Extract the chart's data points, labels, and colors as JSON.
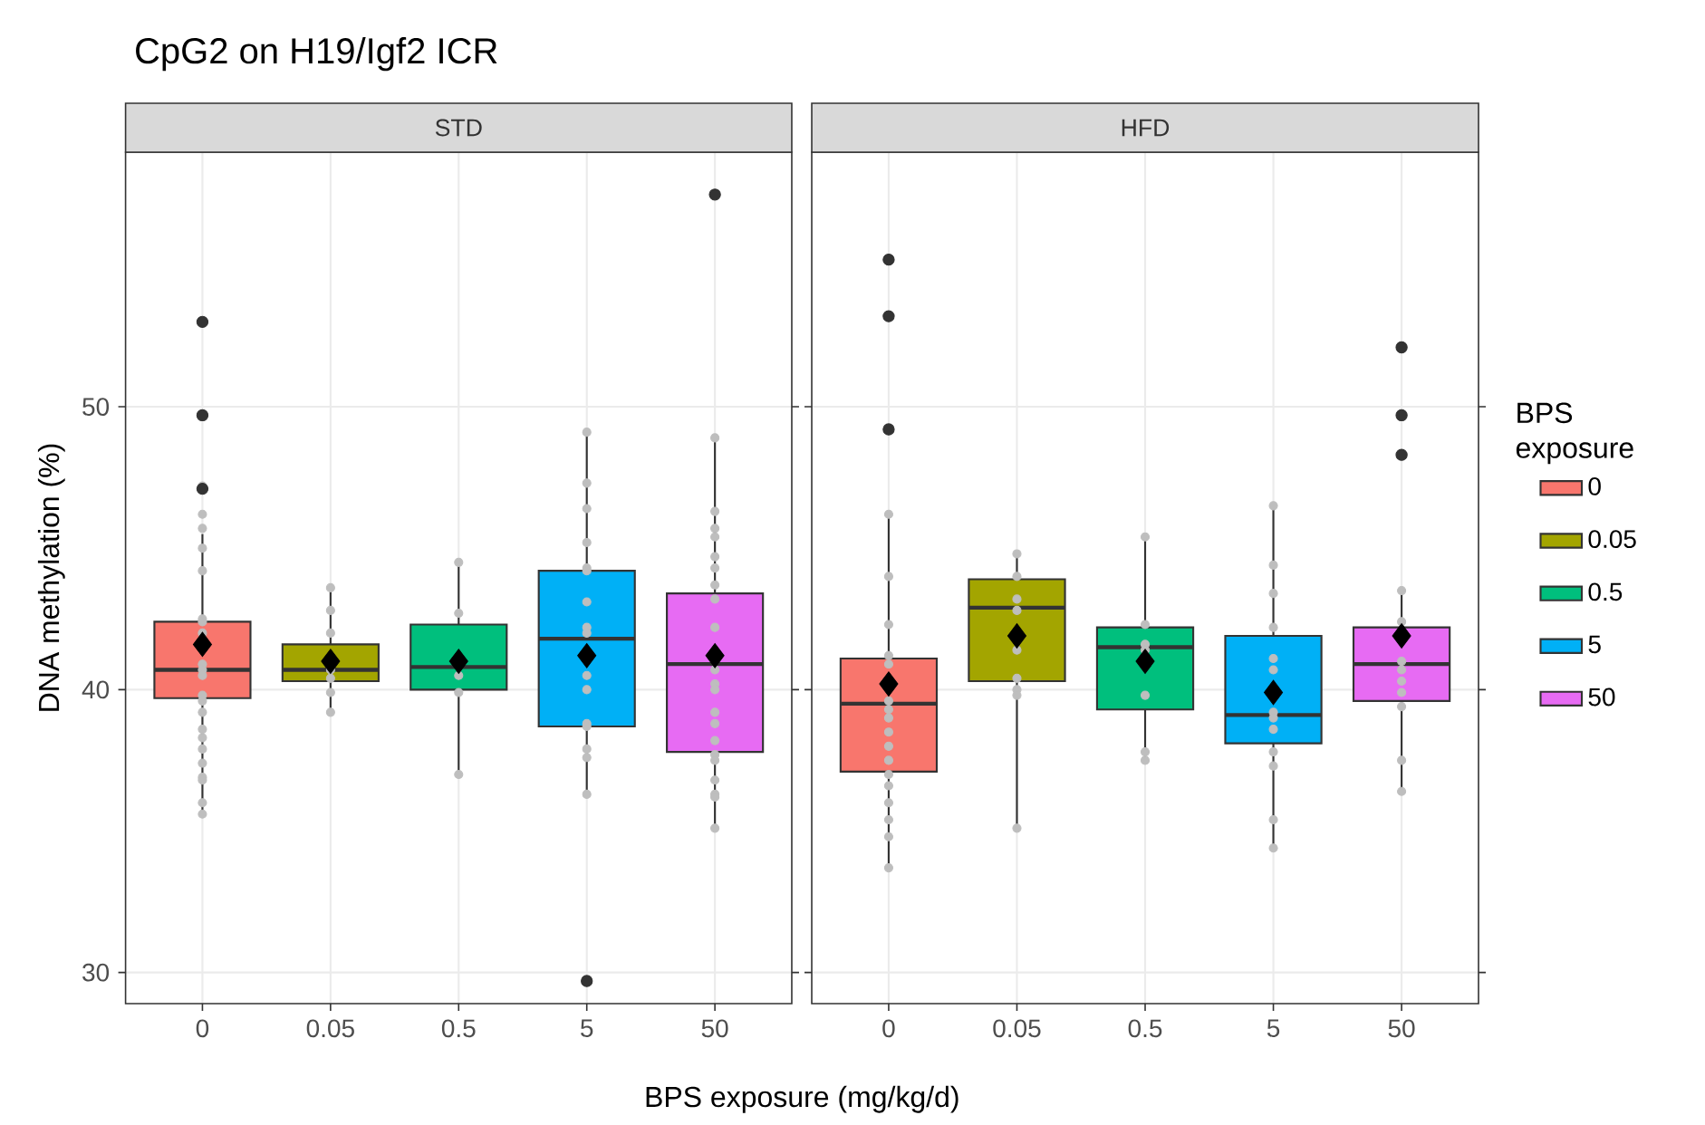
{
  "chart_data": [
    {
      "type": "box",
      "title": "CpG2 on H19/Igf2 ICR",
      "subtitle": "STD",
      "xlabel": "BPS exposure (mg/kg/d)",
      "ylabel": "DNA methylation (%)",
      "categories": [
        "0",
        "0.05",
        "0.5",
        "5",
        "50"
      ],
      "ylim": [
        28.9,
        59.0
      ],
      "yticks": [
        30,
        40,
        50
      ],
      "grid": true,
      "series": [
        {
          "color": "#f8766d",
          "boxes": [
            {
              "low": 35.6,
              "q1": 39.7,
              "median": 40.7,
              "q3": 42.4,
              "high": 45.5,
              "mean": 41.6,
              "outliers": [
                53.0,
                49.7,
                47.1
              ]
            },
            null,
            null,
            null,
            null
          ]
        },
        {
          "color": "#a3a500",
          "boxes": [
            null,
            {
              "low": 39.2,
              "q1": 40.3,
              "median": 40.7,
              "q3": 41.6,
              "high": 43.6,
              "mean": 41.0
            },
            null,
            null,
            null
          ]
        },
        {
          "color": "#00bf7d",
          "boxes": [
            null,
            null,
            {
              "low": 37.0,
              "q1": 40.0,
              "median": 40.8,
              "q3": 42.3,
              "high": 44.5,
              "mean": 41.0
            },
            null,
            null
          ]
        },
        {
          "color": "#00b0f6",
          "boxes": [
            null,
            null,
            null,
            {
              "low": 36.3,
              "q1": 38.7,
              "median": 41.8,
              "q3": 44.2,
              "high": 49.1,
              "mean": 41.2,
              "outliers": [
                29.7
              ]
            },
            null
          ]
        },
        {
          "color": "#e76bf3",
          "boxes": [
            null,
            null,
            null,
            null,
            {
              "low": 35.1,
              "q1": 37.8,
              "median": 40.9,
              "q3": 43.4,
              "high": 48.9,
              "mean": 41.2,
              "outliers": [
                57.5
              ]
            }
          ]
        },
        {
          "type": "scatter",
          "color": "#bebebe",
          "x": [
            "0",
            "0",
            "0",
            "0",
            "0",
            "0",
            "0",
            "0",
            "0",
            "0",
            "0",
            "0",
            "0",
            "0",
            "0",
            "0",
            "0",
            "0",
            "0",
            "0",
            "0",
            "0",
            "0.05",
            "0.05",
            "0.05",
            "0.05",
            "0.05",
            "0.05",
            "0.05",
            "0.5",
            "0.5",
            "0.5",
            "0.5",
            "0.5",
            "5",
            "5",
            "5",
            "5",
            "5",
            "5",
            "5",
            "5",
            "5",
            "5",
            "5",
            "5",
            "5",
            "5",
            "5",
            "5",
            "50",
            "50",
            "50",
            "50",
            "50",
            "50",
            "50",
            "50",
            "50",
            "50",
            "50",
            "50",
            "50",
            "50",
            "50",
            "50",
            "50",
            "50",
            "50",
            "50",
            "50"
          ],
          "values": [
            45.7,
            45.0,
            44.2,
            42.5,
            42.4,
            42.0,
            40.9,
            40.7,
            40.5,
            39.8,
            39.6,
            39.2,
            38.6,
            38.3,
            37.9,
            37.4,
            36.9,
            36.8,
            36.0,
            35.6,
            47.2,
            46.2,
            43.6,
            42.8,
            42.0,
            40.7,
            40.4,
            39.9,
            39.2,
            44.5,
            42.7,
            40.5,
            39.9,
            37.0,
            49.1,
            47.3,
            46.4,
            45.2,
            44.3,
            44.2,
            43.1,
            42.2,
            42.0,
            40.5,
            40.0,
            38.8,
            38.7,
            37.9,
            37.6,
            36.3,
            48.9,
            46.3,
            45.7,
            45.4,
            44.7,
            44.3,
            43.7,
            43.2,
            42.2,
            40.7,
            40.2,
            40.0,
            39.2,
            38.8,
            38.2,
            37.7,
            37.5,
            36.8,
            36.3,
            36.2,
            35.1
          ]
        }
      ]
    },
    {
      "type": "box",
      "subtitle": "HFD",
      "legend": "right",
      "legend_title": "BPS exposure",
      "categories": [
        "0",
        "0.05",
        "0.5",
        "5",
        "50"
      ],
      "ylim": [
        28.9,
        59.0
      ],
      "yticks": [
        30,
        40,
        50
      ],
      "grid": true,
      "tick_labels": "x",
      "series": [
        {
          "name": "0",
          "color": "#f8766d",
          "boxes": [
            {
              "low": 33.7,
              "q1": 37.1,
              "median": 39.5,
              "q3": 41.1,
              "high": 46.1,
              "mean": 40.2,
              "outliers": [
                55.2,
                53.2,
                49.2
              ]
            },
            null,
            null,
            null,
            null
          ]
        },
        {
          "name": "0.05",
          "color": "#a3a500",
          "boxes": [
            null,
            {
              "low": 35.1,
              "q1": 40.3,
              "median": 42.9,
              "q3": 43.9,
              "high": 44.8,
              "mean": 41.9
            },
            null,
            null,
            null
          ]
        },
        {
          "name": "0.5",
          "color": "#00bf7d",
          "boxes": [
            null,
            null,
            {
              "low": 37.5,
              "q1": 39.3,
              "median": 41.5,
              "q3": 42.2,
              "high": 45.4,
              "mean": 41.0
            },
            null,
            null
          ]
        },
        {
          "name": "5",
          "color": "#00b0f6",
          "boxes": [
            null,
            null,
            null,
            {
              "low": 34.4,
              "q1": 38.1,
              "median": 39.1,
              "q3": 41.9,
              "high": 46.4,
              "mean": 39.9
            },
            null
          ]
        },
        {
          "name": "50",
          "color": "#e76bf3",
          "boxes": [
            null,
            null,
            null,
            null,
            {
              "low": 36.4,
              "q1": 39.6,
              "median": 40.9,
              "q3": 42.2,
              "high": 43.5,
              "mean": 41.9,
              "outliers": [
                52.1,
                49.7,
                48.3
              ]
            }
          ]
        },
        {
          "type": "scatter",
          "color": "#bebebe",
          "x": [
            "0",
            "0",
            "0",
            "0",
            "0",
            "0",
            "0",
            "0",
            "0",
            "0",
            "0",
            "0",
            "0",
            "0",
            "0",
            "0",
            "0",
            "0.05",
            "0.05",
            "0.05",
            "0.05",
            "0.05",
            "0.05",
            "0.05",
            "0.05",
            "0.05",
            "0.5",
            "0.5",
            "0.5",
            "0.5",
            "0.5",
            "0.5",
            "0.5",
            "5",
            "5",
            "5",
            "5",
            "5",
            "5",
            "5",
            "5",
            "5",
            "5",
            "5",
            "5",
            "5",
            "50",
            "50",
            "50",
            "50",
            "50",
            "50",
            "50",
            "50",
            "50"
          ],
          "values": [
            46.2,
            44.0,
            42.3,
            41.2,
            40.9,
            39.6,
            39.0,
            38.0,
            37.5,
            37.0,
            36.6,
            36.0,
            35.4,
            34.8,
            33.7,
            38.5,
            39.3,
            44.8,
            44.0,
            43.2,
            42.8,
            41.4,
            40.4,
            40.0,
            39.8,
            35.1,
            45.4,
            42.3,
            41.6,
            41.4,
            39.8,
            37.8,
            37.5,
            46.5,
            44.4,
            43.4,
            42.2,
            41.1,
            40.7,
            39.2,
            39.0,
            38.6,
            37.8,
            37.3,
            35.4,
            34.4,
            43.5,
            42.4,
            41.0,
            40.7,
            40.3,
            39.4,
            37.5,
            36.4,
            39.9
          ]
        }
      ]
    }
  ]
}
